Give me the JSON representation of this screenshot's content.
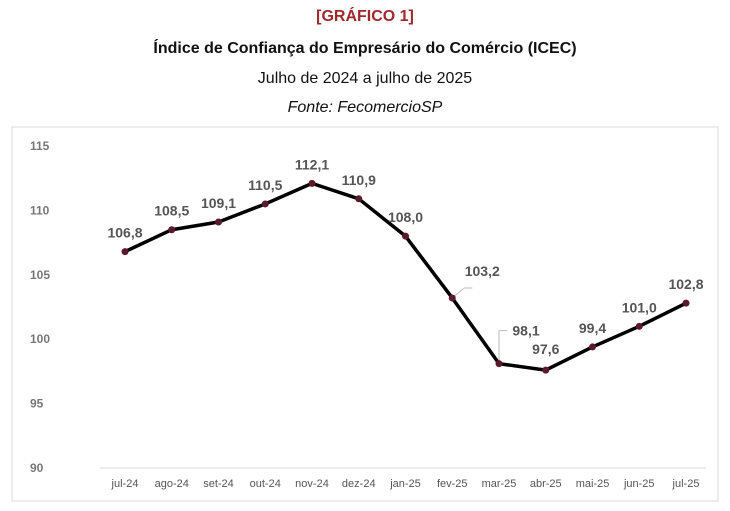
{
  "header": {
    "tag": "[GRÁFICO 1]",
    "title": "Índice de Confiança do Empresário do Comércio (ICEC)",
    "subtitle": "Julho de 2024 a julho de 2025",
    "source": "Fonte: FecomercioSP"
  },
  "chart_data": {
    "type": "line",
    "title": "Índice de Confiança do Empresário do Comércio (ICEC)",
    "categories": [
      "jul-24",
      "ago-24",
      "set-24",
      "out-24",
      "nov-24",
      "dez-24",
      "jan-25",
      "fev-25",
      "mar-25",
      "abr-25",
      "mai-25",
      "jun-25",
      "jul-25"
    ],
    "values": [
      106.8,
      108.5,
      109.1,
      110.5,
      112.1,
      110.9,
      108.0,
      103.2,
      98.1,
      97.6,
      99.4,
      101.0,
      102.8
    ],
    "data_labels": [
      "106,8",
      "108,5",
      "109,1",
      "110,5",
      "112,1",
      "110,9",
      "108,0",
      "103,2",
      "98,1",
      "97,6",
      "99,4",
      "101,0",
      "102,8"
    ],
    "yticks": [
      "90",
      "95",
      "100",
      "105",
      "110",
      "115"
    ],
    "ylim": [
      90,
      115
    ],
    "grid": false,
    "colors": {
      "line": "#000000",
      "marker": "#5a1a2a",
      "tag": "#a0282a"
    }
  }
}
